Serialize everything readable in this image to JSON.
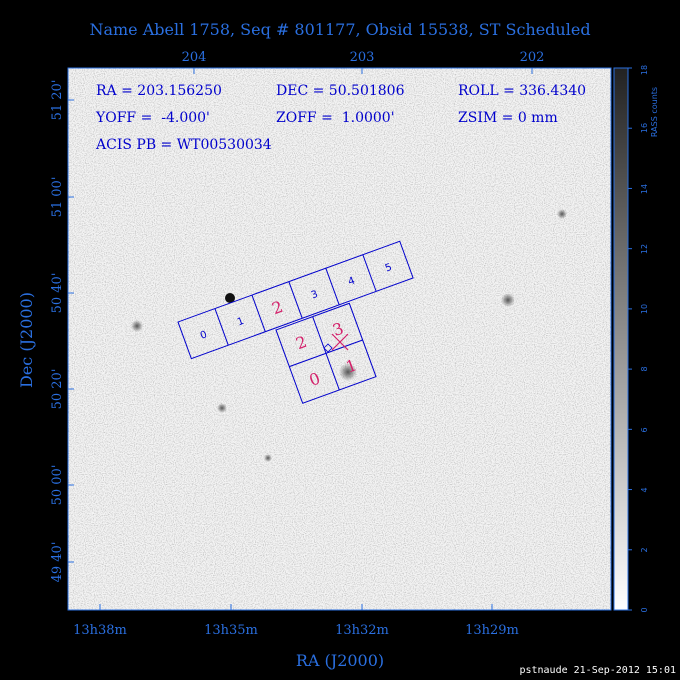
{
  "header": {
    "title": "Name Abell 1758, Seq # 801177, Obsid 15538, ST Scheduled"
  },
  "top_axis": {
    "ticks": [
      "204",
      "203",
      "202"
    ]
  },
  "bottom_axis": {
    "label": "RA (J2000)",
    "ticks": [
      "13h38m",
      "13h35m",
      "13h32m",
      "13h29m"
    ]
  },
  "left_axis": {
    "label": "Dec (J2000)",
    "ticks": [
      "51 20'",
      "51 00'",
      "50 40'",
      "50 20'",
      "50 00'",
      "49 40'"
    ]
  },
  "colorbar": {
    "label": "RASS counts",
    "ticks": [
      "0",
      "2",
      "4",
      "6",
      "8",
      "10",
      "12",
      "14",
      "16",
      "18"
    ],
    "min": 0,
    "max": 18
  },
  "info": {
    "ra": "RA = 203.156250",
    "dec": "DEC = 50.501806",
    "roll": "ROLL = 336.4340",
    "yoff": "YOFF =  -4.000'",
    "zoff": "ZOFF =  1.0000'",
    "zsim": "ZSIM = 0 mm",
    "acis_pb": "ACIS PB = WT00530034"
  },
  "acis_s": {
    "chip_labels": [
      "0",
      "1",
      "2",
      "3",
      "4",
      "5"
    ]
  },
  "acis_i": {
    "chip_labels": [
      "2",
      "3",
      "0",
      "1"
    ]
  },
  "footer": {
    "credit": "pstnaude 21-Sep-2012 15:01"
  },
  "colors": {
    "axis": "#2a6fe0",
    "chip_outline": "#0000cc",
    "chip_highlight": "#d4206a",
    "background": "#000000"
  }
}
